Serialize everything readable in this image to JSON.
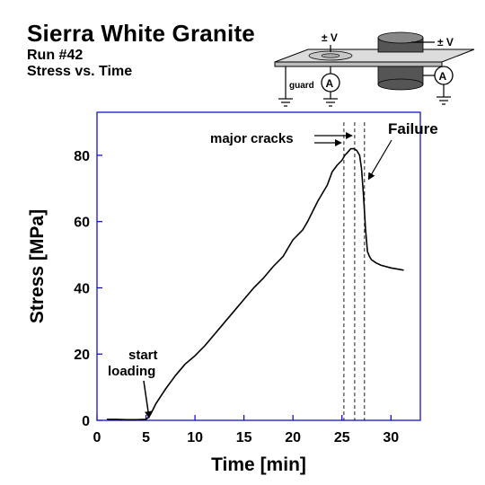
{
  "header": {
    "title": "Sierra White Granite",
    "run": "Run #42",
    "subtitle": "Stress vs. Time"
  },
  "diagram": {
    "voltage_left": "± V",
    "voltage_right": "± V",
    "guard": "guard",
    "ammeter_symbol": "A"
  },
  "colors": {
    "axis": "#0000cc",
    "curve": "#000000"
  },
  "chart_data": {
    "type": "line",
    "title": "Stress vs. Time",
    "xlabel": "Time [min]",
    "ylabel": "Stress [MPa]",
    "xlim": [
      0,
      33
    ],
    "ylim": [
      0,
      93
    ],
    "xticks": [
      0,
      5,
      10,
      15,
      20,
      25,
      30
    ],
    "yticks": [
      0,
      20,
      40,
      60,
      80
    ],
    "grid": false,
    "series": [
      {
        "x": [
          1.0,
          2.0,
          3.0,
          4.0,
          5.0,
          5.3,
          5.5,
          6,
          7,
          8,
          9,
          10,
          11,
          12,
          13,
          14,
          15,
          16,
          17,
          18,
          19,
          19.5,
          20,
          21,
          21.5,
          22,
          22.5,
          23,
          23.5,
          24,
          24.5,
          25,
          25.3,
          25.6,
          25.9,
          26.2,
          26.5,
          26.8,
          27.0,
          27.2,
          27.4,
          27.6,
          27.8,
          28.0,
          28.5,
          29,
          30,
          31,
          31.3
        ],
        "y": [
          0.3,
          0.3,
          0.2,
          0.2,
          0.3,
          1.0,
          2.0,
          5,
          9.5,
          13.5,
          17,
          19.5,
          22.5,
          26,
          29.5,
          33,
          36.5,
          40,
          43,
          46.5,
          49.5,
          52,
          54.5,
          57.5,
          60,
          63,
          66,
          68.5,
          71,
          75,
          77,
          78.5,
          80,
          81,
          82,
          82,
          81.5,
          80,
          76,
          68,
          58,
          51,
          49.5,
          48.5,
          47.5,
          46.8,
          46,
          45.5,
          45.3
        ]
      }
    ],
    "vlines": [
      25.2,
      26.3,
      27.3
    ],
    "annotations": {
      "start_loading_1": "start",
      "start_loading_2": "loading",
      "major_cracks": "major cracks",
      "failure": "Failure"
    }
  }
}
